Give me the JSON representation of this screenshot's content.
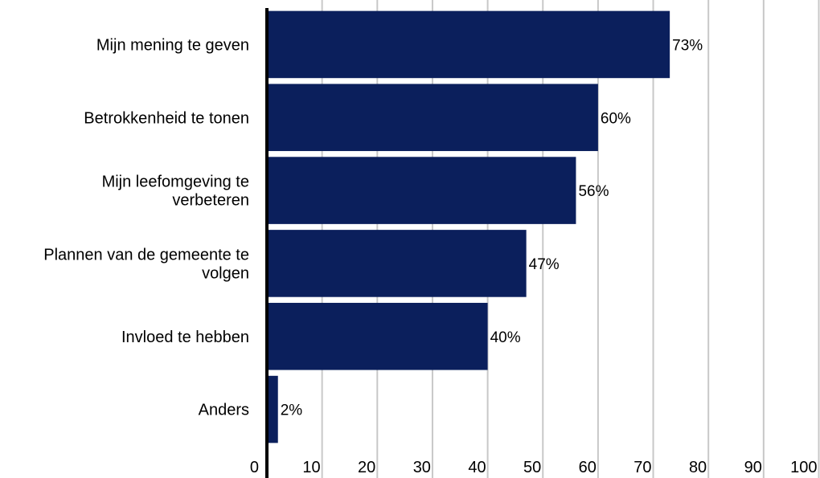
{
  "chart_data": {
    "type": "bar",
    "orientation": "horizontal",
    "categories": [
      [
        "Mijn mening te geven"
      ],
      [
        "Betrokkenheid te tonen"
      ],
      [
        "Mijn leefomgeving te",
        "verbeteren"
      ],
      [
        "Plannen van de gemeente te",
        "volgen"
      ],
      [
        "Invloed te hebben"
      ],
      [
        "Anders"
      ]
    ],
    "values": [
      73,
      60,
      56,
      47,
      40,
      2
    ],
    "value_labels": [
      "73%",
      "60%",
      "56%",
      "47%",
      "40%",
      "2%"
    ],
    "xlim": [
      0,
      100
    ],
    "x_ticks": [
      "0",
      "10",
      "20",
      "30",
      "40",
      "50",
      "60",
      "70",
      "80",
      "90",
      "100"
    ],
    "title": "",
    "xlabel": "",
    "ylabel": "",
    "grid": "vertical",
    "legend": "none",
    "colors": {
      "bar": "#0b1f5c",
      "grid": "#c8c8c8",
      "axis": "#000000",
      "text": "#000000"
    }
  }
}
